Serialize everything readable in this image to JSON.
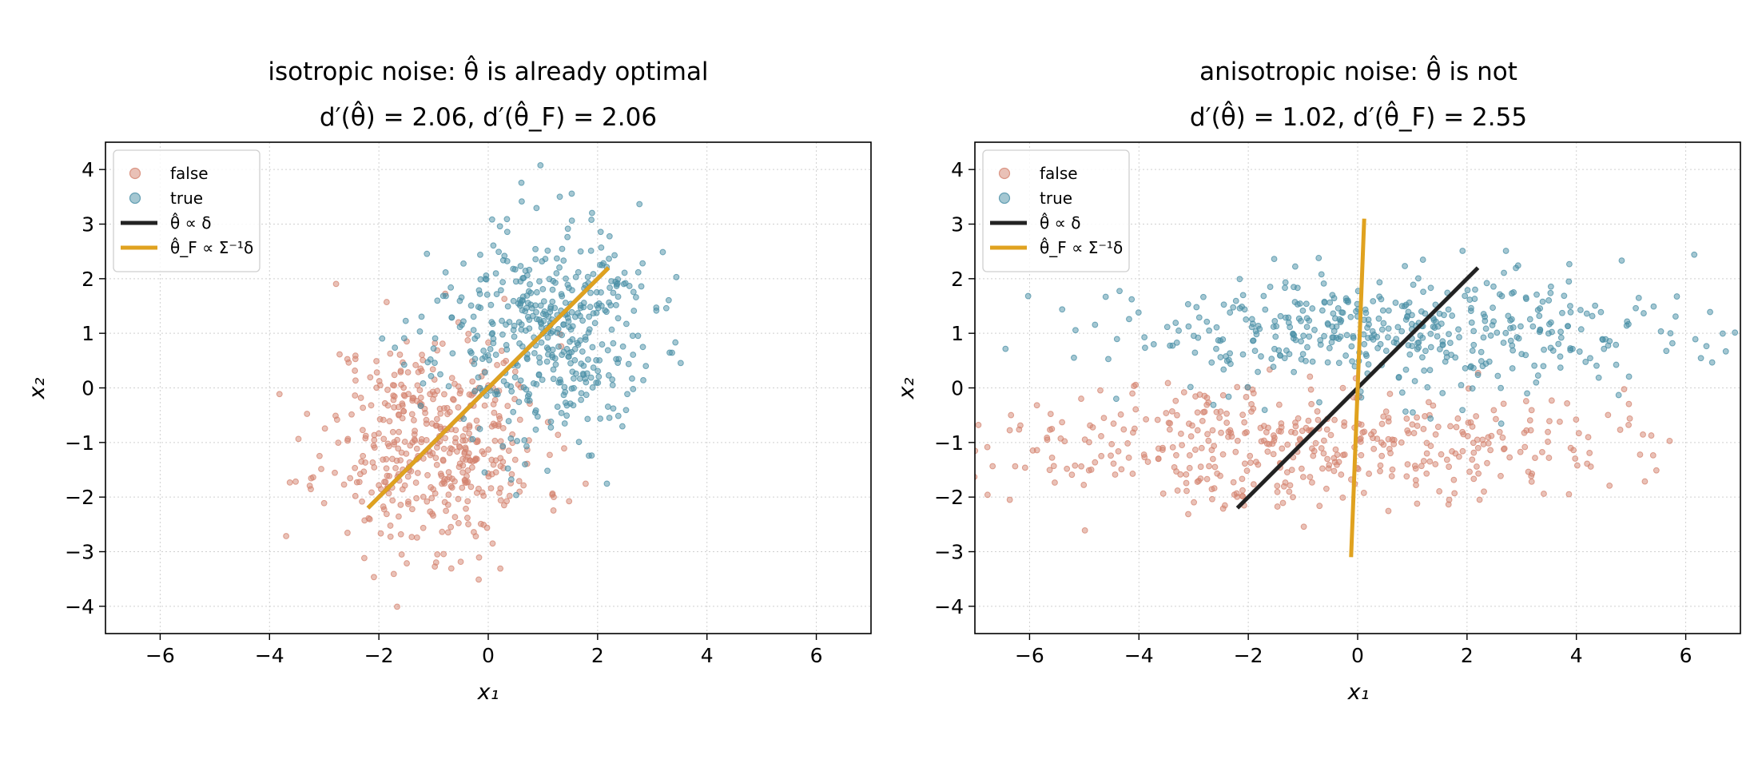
{
  "figure": {
    "background": "#ffffff"
  },
  "colors": {
    "false": "#d4836f",
    "true": "#4a8fa6",
    "theta": "#222222",
    "theta_F": "#e0a21f",
    "grid": "#d0d0d0"
  },
  "chart_data": [
    {
      "type": "scatter",
      "title_line1": "isotropic noise:  θ̂ is already optimal",
      "title_line2": "d′(θ̂) = 2.06,  d′(θ̂_F) = 2.06",
      "xlabel": "x₁",
      "ylabel": "x₂",
      "xlim": [
        -7,
        7
      ],
      "ylim": [
        -4.5,
        4.5
      ],
      "xticks": [
        -6,
        -4,
        -2,
        0,
        2,
        4,
        6
      ],
      "yticks": [
        -4,
        -3,
        -2,
        -1,
        0,
        1,
        2,
        3,
        4
      ],
      "grid": true,
      "legend_position": "upper-left",
      "legend": [
        {
          "key": "false",
          "label": "false",
          "kind": "marker"
        },
        {
          "key": "true",
          "label": "true",
          "kind": "marker"
        },
        {
          "key": "theta",
          "label": "θ̂ ∝ δ",
          "kind": "line"
        },
        {
          "key": "theta_F",
          "label": "θ̂_F ∝ Σ⁻¹δ",
          "kind": "line"
        }
      ],
      "series": [
        {
          "name": "false",
          "class_mean": [
            -1,
            -1
          ],
          "spread": [
            1,
            1
          ],
          "n": 450,
          "seed": 11
        },
        {
          "name": "true",
          "class_mean": [
            1,
            1
          ],
          "spread": [
            1,
            1
          ],
          "n": 450,
          "seed": 23
        }
      ],
      "lines": [
        {
          "name": "θ̂ ∝ δ",
          "x": [
            -2.2,
            2.2
          ],
          "y": [
            -2.2,
            2.2
          ]
        },
        {
          "name": "θ̂_F ∝ Σ⁻¹δ",
          "x": [
            -2.2,
            2.2
          ],
          "y": [
            -2.2,
            2.2
          ]
        }
      ]
    },
    {
      "type": "scatter",
      "title_line1": "anisotropic noise:  θ̂ is not",
      "title_line2": "d′(θ̂) = 1.02,  d′(θ̂_F) = 2.55",
      "xlabel": "x₁",
      "ylabel": "x₂",
      "xlim": [
        -7,
        7
      ],
      "ylim": [
        -4.5,
        4.5
      ],
      "xticks": [
        -6,
        -4,
        -2,
        0,
        2,
        4,
        6
      ],
      "yticks": [
        -4,
        -3,
        -2,
        -1,
        0,
        1,
        2,
        3,
        4
      ],
      "grid": true,
      "legend_position": "upper-left",
      "legend": [
        {
          "key": "false",
          "label": "false",
          "kind": "marker"
        },
        {
          "key": "true",
          "label": "true",
          "kind": "marker"
        },
        {
          "key": "theta",
          "label": "θ̂ ∝ δ",
          "kind": "line"
        },
        {
          "key": "theta_F",
          "label": "θ̂_F ∝ Σ⁻¹δ",
          "kind": "line"
        }
      ],
      "series": [
        {
          "name": "false",
          "class_mean": [
            -1,
            -1
          ],
          "spread": [
            2.8,
            0.55
          ],
          "n": 450,
          "seed": 37
        },
        {
          "name": "true",
          "class_mean": [
            1,
            1
          ],
          "spread": [
            2.8,
            0.55
          ],
          "n": 450,
          "seed": 53
        }
      ],
      "lines": [
        {
          "name": "θ̂ ∝ δ",
          "x": [
            -2.2,
            2.2
          ],
          "y": [
            -2.2,
            2.2
          ]
        },
        {
          "name": "θ̂_F ∝ Σ⁻¹δ",
          "x": [
            -0.12,
            0.12
          ],
          "y": [
            -3.1,
            3.1
          ]
        }
      ]
    }
  ]
}
